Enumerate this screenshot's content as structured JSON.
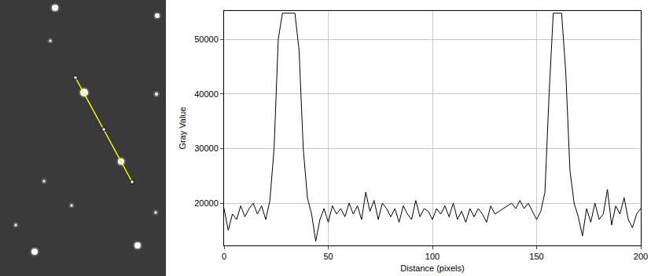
{
  "chart_data": {
    "type": "line",
    "x_label": "Distance (pixels)",
    "y_label": "Gray Value",
    "x": [
      0,
      2,
      4,
      6,
      8,
      10,
      12,
      14,
      16,
      18,
      20,
      22,
      24,
      26,
      28,
      30,
      32,
      34,
      36,
      38,
      40,
      42,
      44,
      46,
      48,
      50,
      52,
      54,
      56,
      58,
      60,
      62,
      64,
      66,
      68,
      70,
      72,
      74,
      76,
      78,
      80,
      82,
      84,
      86,
      88,
      90,
      92,
      94,
      96,
      98,
      100,
      102,
      104,
      106,
      108,
      110,
      112,
      114,
      116,
      118,
      120,
      122,
      124,
      126,
      128,
      130,
      132,
      134,
      136,
      138,
      140,
      142,
      144,
      146,
      148,
      150,
      152,
      154,
      156,
      158,
      160,
      162,
      164,
      166,
      168,
      170,
      172,
      174,
      176,
      178,
      180,
      182,
      184,
      186,
      188,
      190,
      192,
      194,
      196,
      198,
      200
    ],
    "values": [
      19000,
      15000,
      18000,
      17000,
      19500,
      17500,
      19000,
      20000,
      18000,
      19500,
      17000,
      20500,
      30000,
      50000,
      54800,
      54800,
      54800,
      54800,
      48000,
      30000,
      21000,
      18000,
      13000,
      17000,
      19000,
      16500,
      19500,
      18000,
      19000,
      17500,
      20000,
      18000,
      19500,
      17000,
      22000,
      18500,
      20500,
      17000,
      20000,
      19000,
      17500,
      19000,
      16500,
      19500,
      18000,
      17000,
      20500,
      17500,
      19000,
      18500,
      17000,
      19000,
      18000,
      19500,
      17500,
      20000,
      17000,
      18500,
      16500,
      19000,
      17500,
      19000,
      18000,
      16500,
      19500,
      18000,
      18500,
      19000,
      19500,
      20000,
      19000,
      20500,
      19000,
      20000,
      18500,
      17000,
      18500,
      22000,
      40000,
      54800,
      54800,
      54800,
      44000,
      26000,
      20000,
      17500,
      14000,
      19000,
      16500,
      20000,
      17000,
      18000,
      22500,
      16000,
      19500,
      18000,
      21000,
      17000,
      15500,
      18000,
      19000
    ],
    "color": "#000000",
    "xlim": [
      0,
      200
    ],
    "ylim": [
      12250,
      55200
    ],
    "xticks": [
      0,
      50,
      100,
      150,
      200
    ],
    "yticks": [
      20000,
      30000,
      40000,
      50000
    ],
    "grid": true
  }
}
